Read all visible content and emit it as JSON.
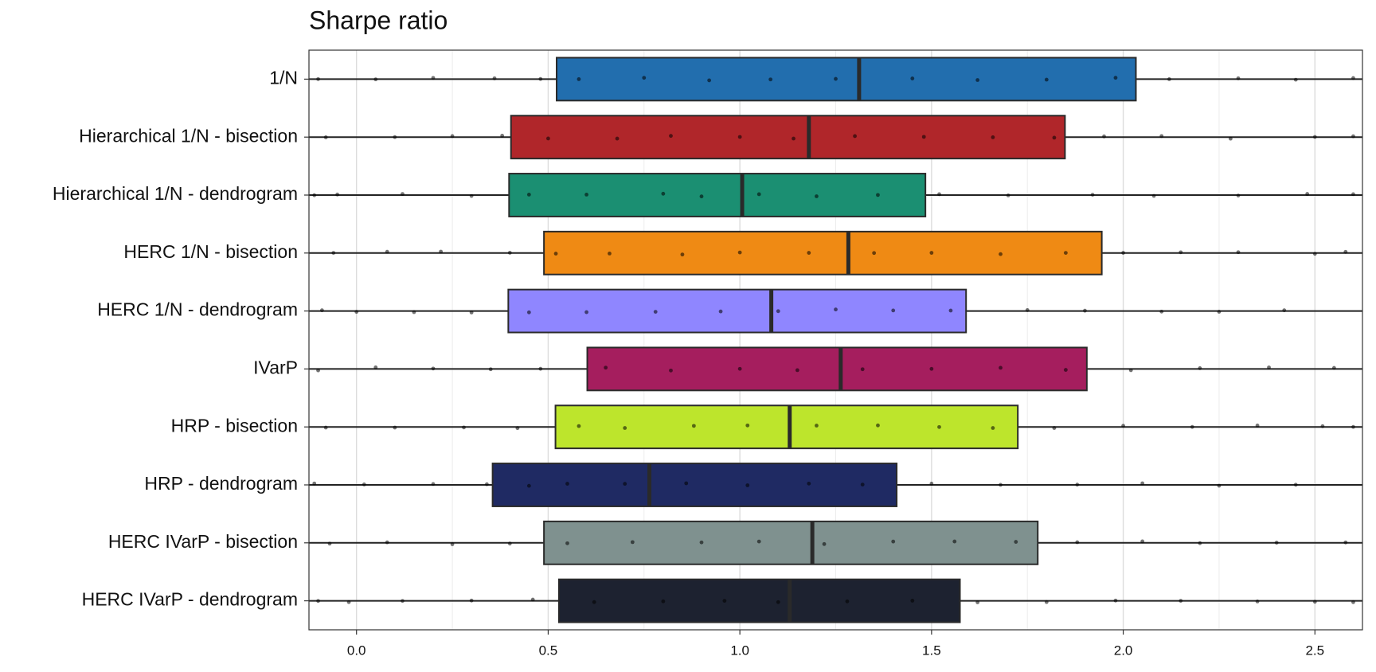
{
  "chart_data": {
    "type": "boxplot",
    "title": "Sharpe ratio",
    "xlim": [
      -0.124,
      2.624
    ],
    "xticks": [
      {
        "value": 0,
        "label": "0.0"
      },
      0.5,
      {
        "value": 1,
        "label": "1.0"
      },
      1.5,
      {
        "value": 2,
        "label": "2.0"
      },
      2.5
    ],
    "xminor_ticks": [
      0.25,
      0.75,
      1.25,
      1.75,
      2.25
    ],
    "grid": true,
    "boxes": [
      {
        "name": "1/N",
        "color": "#226eae",
        "q1": 0.522,
        "median": 1.311,
        "q3": 2.033,
        "points": [
          -0.1,
          0.05,
          0.2,
          0.36,
          0.48,
          0.58,
          0.75,
          0.92,
          1.08,
          1.25,
          1.45,
          1.62,
          1.8,
          1.98,
          2.12,
          2.3,
          2.45,
          2.6
        ]
      },
      {
        "name": "Hierarchical 1/N - bisection",
        "color": "#b0262a",
        "q1": 0.403,
        "median": 1.18,
        "q3": 1.848,
        "points": [
          -0.08,
          0.1,
          0.25,
          0.38,
          0.5,
          0.68,
          0.82,
          1.0,
          1.14,
          1.3,
          1.48,
          1.66,
          1.82,
          1.95,
          2.1,
          2.28,
          2.5,
          2.6
        ]
      },
      {
        "name": "Hierarchical 1/N - dendrogram",
        "color": "#1b8f72",
        "q1": 0.398,
        "median": 1.006,
        "q3": 1.484,
        "points": [
          -0.11,
          -0.05,
          0.12,
          0.3,
          0.45,
          0.6,
          0.8,
          0.9,
          1.05,
          1.2,
          1.36,
          1.52,
          1.7,
          1.92,
          2.08,
          2.3,
          2.48,
          2.6
        ]
      },
      {
        "name": "HERC 1/N - bisection",
        "color": "#ef8a14",
        "q1": 0.489,
        "median": 1.283,
        "q3": 1.944,
        "points": [
          -0.06,
          0.08,
          0.22,
          0.4,
          0.52,
          0.66,
          0.85,
          1.0,
          1.18,
          1.35,
          1.5,
          1.68,
          1.85,
          2.0,
          2.15,
          2.3,
          2.5,
          2.58
        ]
      },
      {
        "name": "HERC 1/N - dendrogram",
        "color": "#8f86ff",
        "q1": 0.396,
        "median": 1.082,
        "q3": 1.59,
        "points": [
          -0.09,
          0.0,
          0.15,
          0.3,
          0.45,
          0.6,
          0.78,
          0.95,
          1.1,
          1.25,
          1.4,
          1.55,
          1.75,
          1.9,
          2.1,
          2.25,
          2.42
        ]
      },
      {
        "name": "IVarP",
        "color": "#a51e5e",
        "q1": 0.602,
        "median": 1.263,
        "q3": 1.905,
        "points": [
          -0.1,
          0.05,
          0.2,
          0.35,
          0.48,
          0.65,
          0.82,
          1.0,
          1.15,
          1.32,
          1.5,
          1.68,
          1.85,
          2.02,
          2.2,
          2.38,
          2.55
        ]
      },
      {
        "name": "HRP - bisection",
        "color": "#bde52c",
        "q1": 0.519,
        "median": 1.13,
        "q3": 1.725,
        "points": [
          -0.08,
          0.1,
          0.28,
          0.42,
          0.58,
          0.7,
          0.88,
          1.02,
          1.2,
          1.36,
          1.52,
          1.66,
          1.82,
          2.0,
          2.18,
          2.35,
          2.52,
          2.6
        ]
      },
      {
        "name": "HRP - dendrogram",
        "color": "#1f2a63",
        "q1": 0.355,
        "median": 0.764,
        "q3": 1.409,
        "points": [
          -0.11,
          0.02,
          0.2,
          0.34,
          0.45,
          0.55,
          0.7,
          0.86,
          1.02,
          1.18,
          1.32,
          1.5,
          1.68,
          1.88,
          2.05,
          2.25,
          2.45
        ]
      },
      {
        "name": "HERC IVarP - bisection",
        "color": "#7f918f",
        "q1": 0.489,
        "median": 1.189,
        "q3": 1.777,
        "points": [
          -0.07,
          0.08,
          0.25,
          0.4,
          0.55,
          0.72,
          0.9,
          1.05,
          1.22,
          1.4,
          1.56,
          1.72,
          1.88,
          2.05,
          2.2,
          2.4,
          2.58
        ]
      },
      {
        "name": "HERC IVarP - dendrogram",
        "color": "#1d2230",
        "q1": 0.528,
        "median": 1.13,
        "q3": 1.574,
        "points": [
          -0.1,
          -0.02,
          0.12,
          0.3,
          0.46,
          0.62,
          0.8,
          0.96,
          1.1,
          1.28,
          1.45,
          1.62,
          1.8,
          1.98,
          2.15,
          2.35,
          2.5,
          2.6
        ]
      }
    ]
  }
}
